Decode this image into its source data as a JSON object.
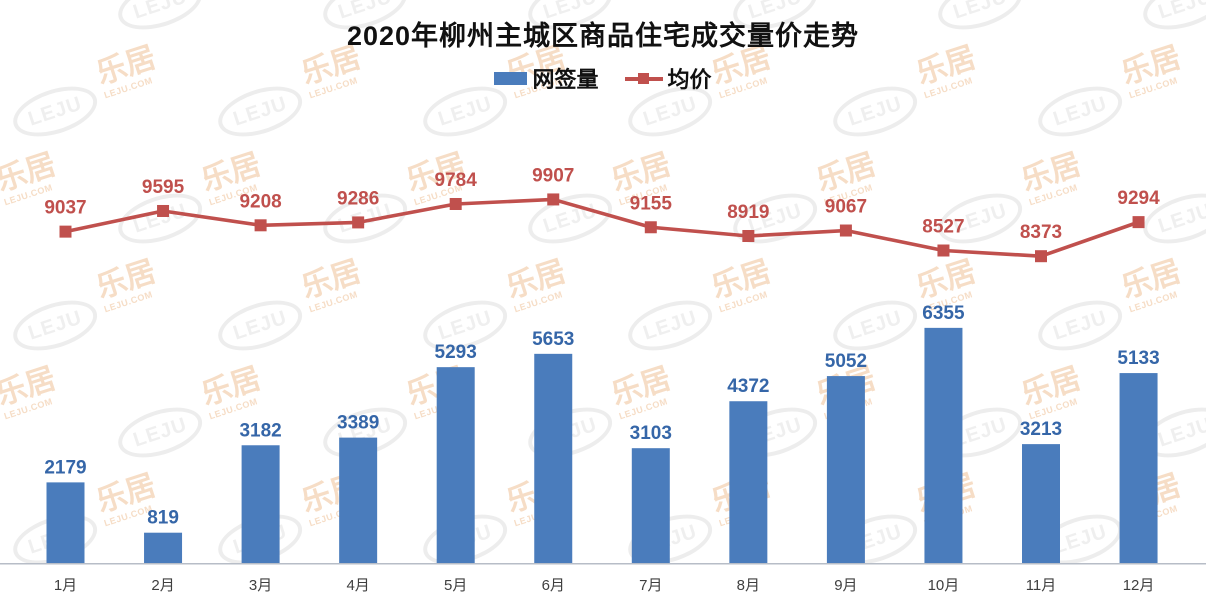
{
  "header": {
    "title": "2020年柳州主城区商品住宅成交量价走势"
  },
  "legend": [
    {
      "label": "网签量",
      "type": "bar",
      "color": "#4A7CBC"
    },
    {
      "label": "均价",
      "type": "line",
      "color": "#C0504D"
    }
  ],
  "watermark": {
    "logo_text": "LEJU",
    "cn_text": "乐居",
    "sub_text": "LEJU.COM"
  },
  "colors": {
    "bar_fill": "#4A7CBC",
    "bar_label": "#3566A8",
    "line_stroke": "#C0504D",
    "line_label": "#C0504D",
    "axis_line": "#B7BDC7",
    "x_tick_label": "#3F3F3F"
  },
  "chart_data": {
    "type": "bar",
    "subtype": "bar+line combo",
    "title": "2020年柳州主城区商品住宅成交量价走势",
    "categories": [
      "1月",
      "2月",
      "3月",
      "4月",
      "5月",
      "6月",
      "7月",
      "8月",
      "9月",
      "10月",
      "11月",
      "12月"
    ],
    "series": [
      {
        "name": "网签量",
        "type": "bar",
        "color": "#4A7CBC",
        "values": [
          2179,
          819,
          3182,
          3389,
          5293,
          5653,
          3103,
          4372,
          5052,
          6355,
          3213,
          5133
        ]
      },
      {
        "name": "均价",
        "type": "line",
        "color": "#C0504D",
        "marker": "square",
        "values": [
          9037,
          9595,
          9208,
          9286,
          9784,
          9907,
          9155,
          8919,
          9067,
          8527,
          8373,
          9294
        ]
      }
    ],
    "xlabel": "",
    "ylabel": "",
    "value_axis_hidden": true,
    "shared_value_scale": true,
    "approx_value_range": [
      0,
      15000
    ],
    "grid": false,
    "legend_position": "top-center",
    "data_labels": true
  }
}
